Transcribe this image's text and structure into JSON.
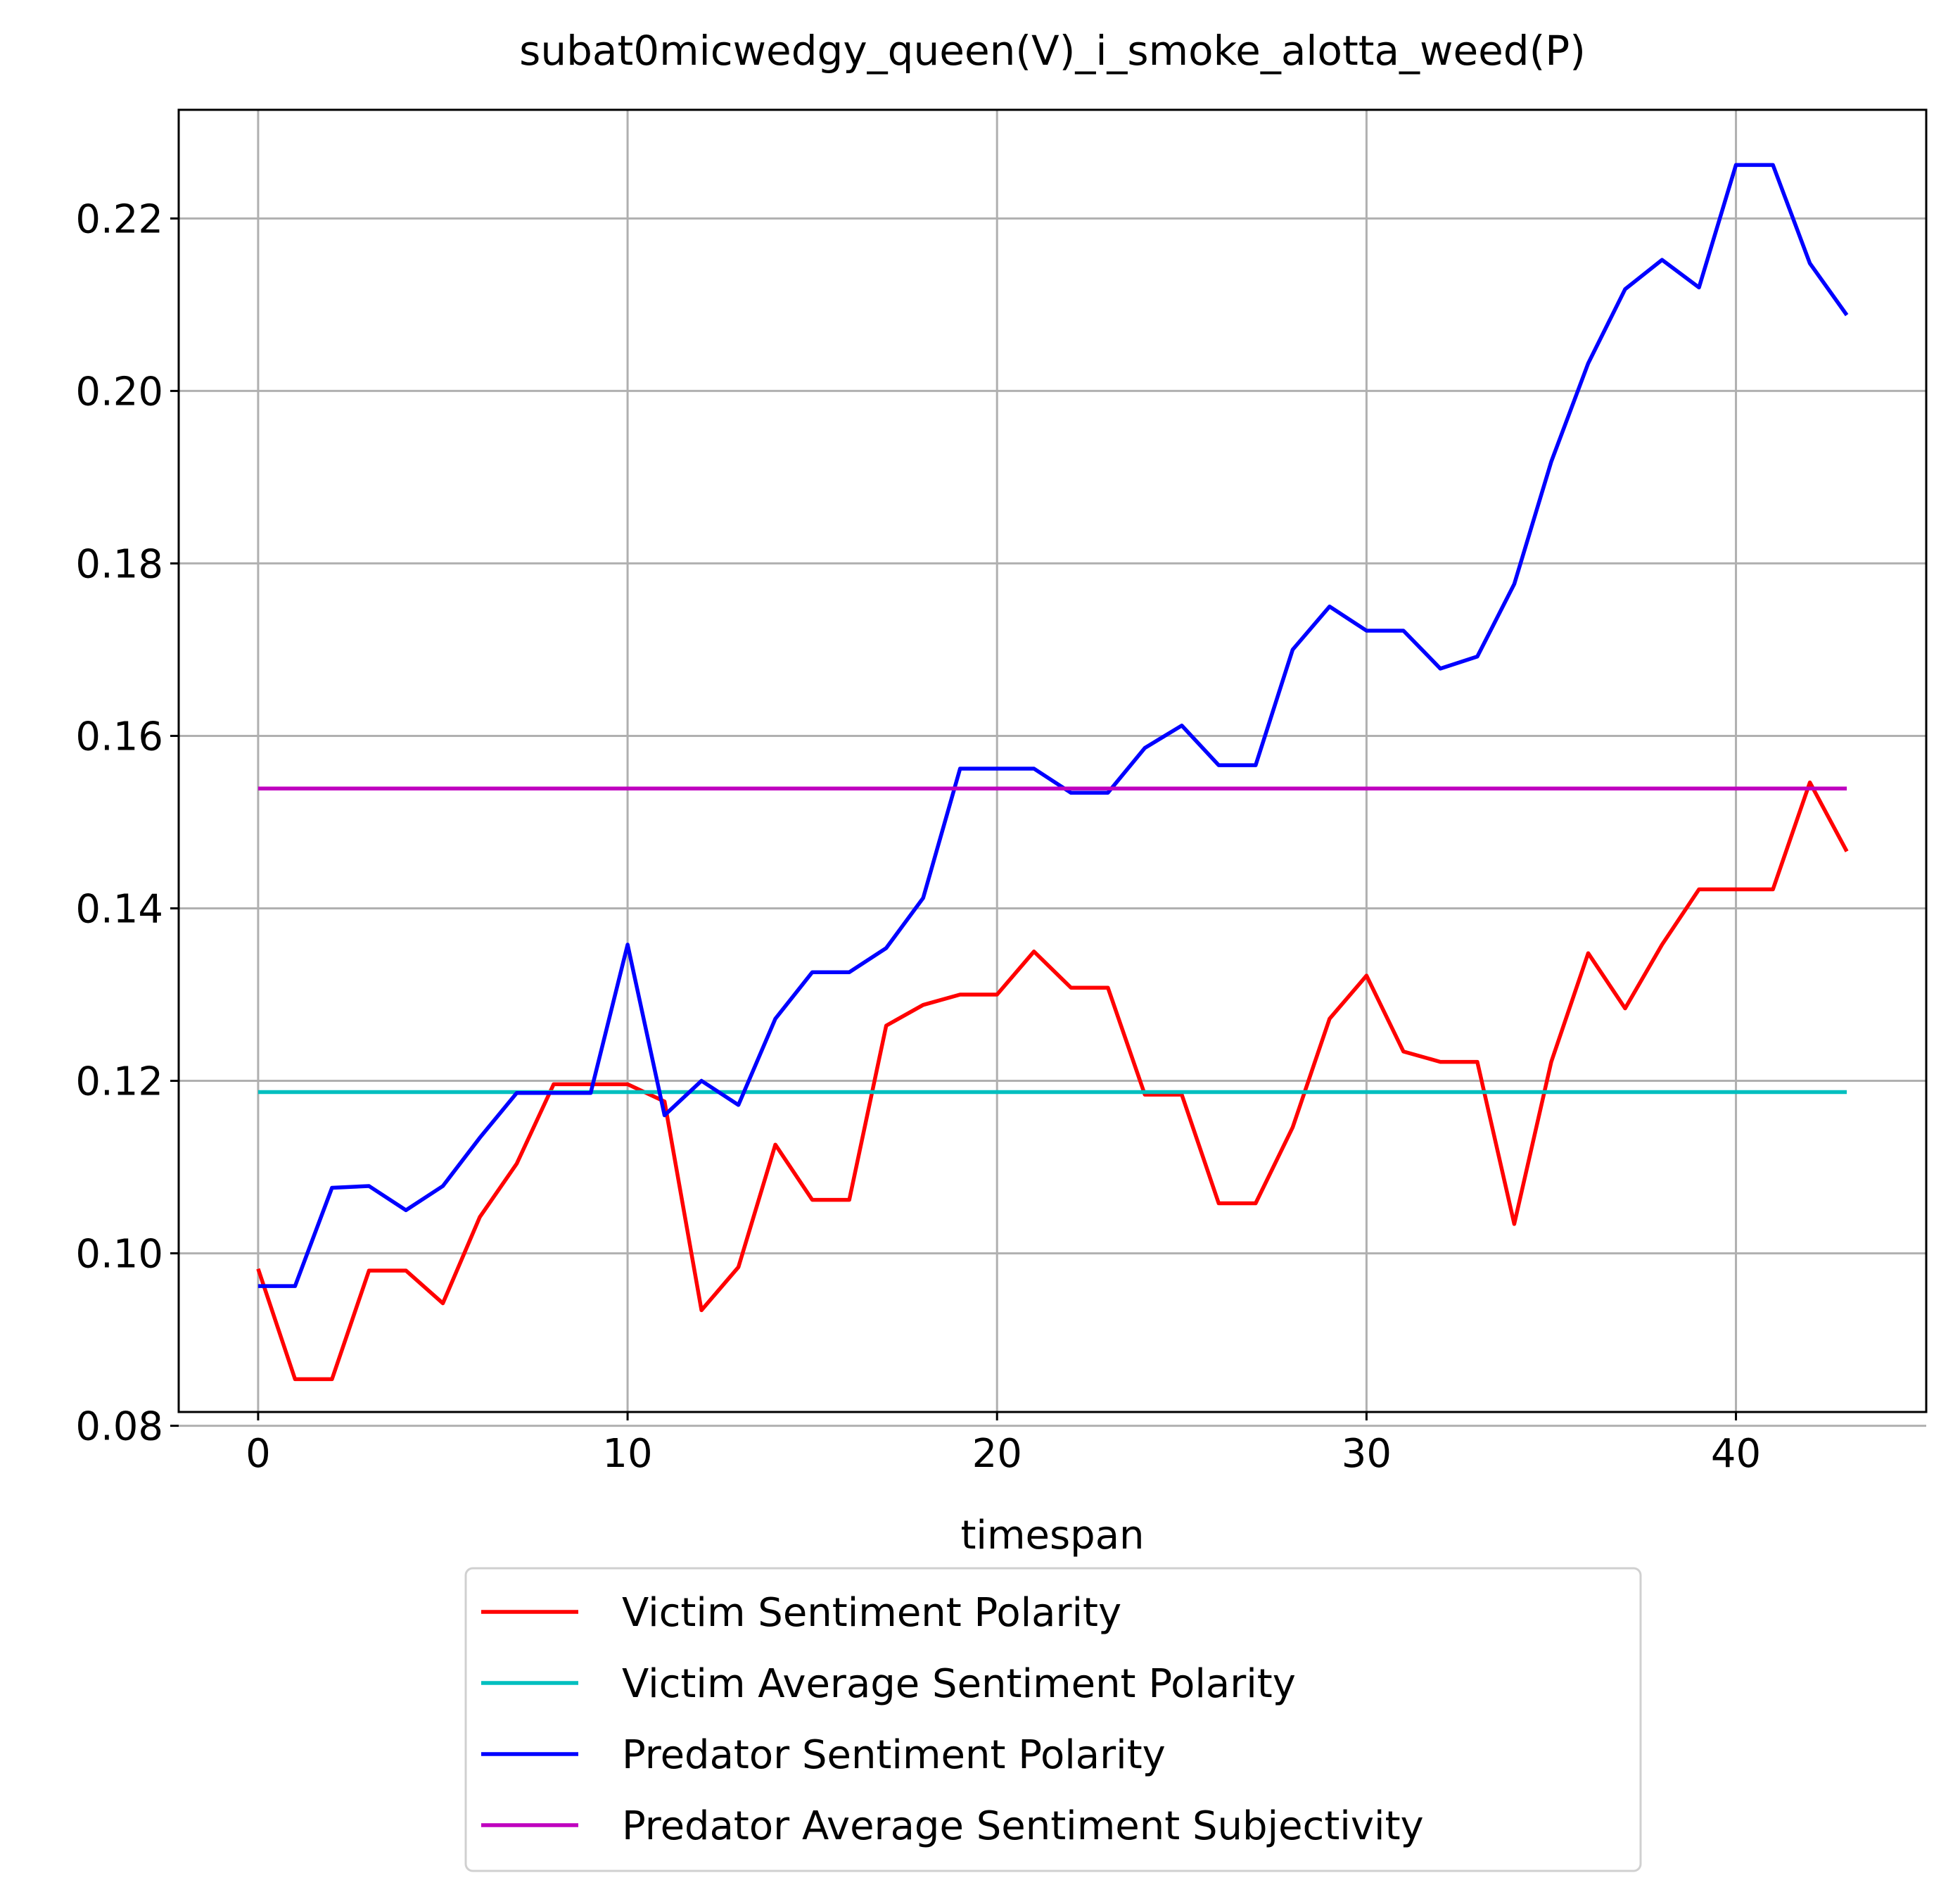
{
  "chart_data": {
    "type": "line",
    "title": "subat0micwedgy_queen(V)_i_smoke_alotta_weed(P)",
    "xlabel": "timespan",
    "ylabel": "",
    "xlim": [
      -2.15,
      45.15
    ],
    "ylim": [
      0.0816,
      0.2326
    ],
    "x_ticks": [
      0,
      10,
      20,
      30,
      40
    ],
    "x_tick_labels": [
      "0",
      "10",
      "20",
      "30",
      "40"
    ],
    "y_ticks": [
      0.08,
      0.1,
      0.12,
      0.14,
      0.16,
      0.18,
      0.2,
      0.22
    ],
    "y_tick_labels": [
      "0.08",
      "0.10",
      "0.12",
      "0.14",
      "0.16",
      "0.18",
      "0.20",
      "0.22"
    ],
    "grid": true,
    "legend_position": "below-center",
    "series": [
      {
        "name": "Victim Sentiment Polarity",
        "color": "#ff0000",
        "x": [
          0,
          1,
          2,
          3,
          4,
          5,
          6,
          7,
          8,
          9,
          10,
          11,
          12,
          13,
          14,
          15,
          16,
          17,
          18,
          19,
          20,
          21,
          22,
          23,
          24,
          25,
          26,
          27,
          28,
          29,
          30,
          31,
          32,
          33,
          34,
          35,
          36,
          37,
          38,
          39,
          40,
          41,
          42,
          43
        ],
        "y": [
          0.0982,
          0.0854,
          0.0854,
          0.098,
          0.098,
          0.0942,
          0.1042,
          0.1104,
          0.1196,
          0.1196,
          0.1196,
          0.1176,
          0.0934,
          0.0984,
          0.1126,
          0.1062,
          0.1062,
          0.1264,
          0.1288,
          0.13,
          0.13,
          0.135,
          0.1308,
          0.1308,
          0.1184,
          0.1184,
          0.1058,
          0.1058,
          0.1146,
          0.1272,
          0.1322,
          0.1234,
          0.1222,
          0.1222,
          0.1034,
          0.1222,
          0.1348,
          0.1284,
          0.1358,
          0.1422,
          0.1422,
          0.1422,
          0.1546,
          0.1466
        ]
      },
      {
        "name": "Victim Average Sentiment Polarity",
        "color": "#00bfbf",
        "x": [
          0,
          43
        ],
        "y": [
          0.1187,
          0.1187
        ]
      },
      {
        "name": "Predator Sentiment Polarity",
        "color": "#0000ff",
        "x": [
          0,
          1,
          2,
          3,
          4,
          5,
          6,
          7,
          8,
          9,
          10,
          11,
          12,
          13,
          14,
          15,
          16,
          17,
          18,
          19,
          20,
          21,
          22,
          23,
          24,
          25,
          26,
          27,
          28,
          29,
          30,
          31,
          32,
          33,
          34,
          35,
          36,
          37,
          38,
          39,
          40,
          41,
          42,
          43
        ],
        "y": [
          0.0962,
          0.0962,
          0.1076,
          0.1078,
          0.105,
          0.1078,
          0.1134,
          0.1186,
          0.1186,
          0.1186,
          0.1358,
          0.116,
          0.12,
          0.1172,
          0.1272,
          0.1326,
          0.1326,
          0.1354,
          0.1412,
          0.1562,
          0.1562,
          0.1562,
          0.1534,
          0.1534,
          0.1586,
          0.1612,
          0.1566,
          0.1566,
          0.17,
          0.175,
          0.1722,
          0.1722,
          0.1678,
          0.1692,
          0.1776,
          0.1918,
          0.2032,
          0.2118,
          0.2152,
          0.212,
          0.2262,
          0.2262,
          0.2148,
          0.2088
        ]
      },
      {
        "name": "Predator Average Sentiment Subjectivity",
        "color": "#bf00bf",
        "x": [
          0,
          43
        ],
        "y": [
          0.1539,
          0.1539
        ]
      }
    ]
  }
}
